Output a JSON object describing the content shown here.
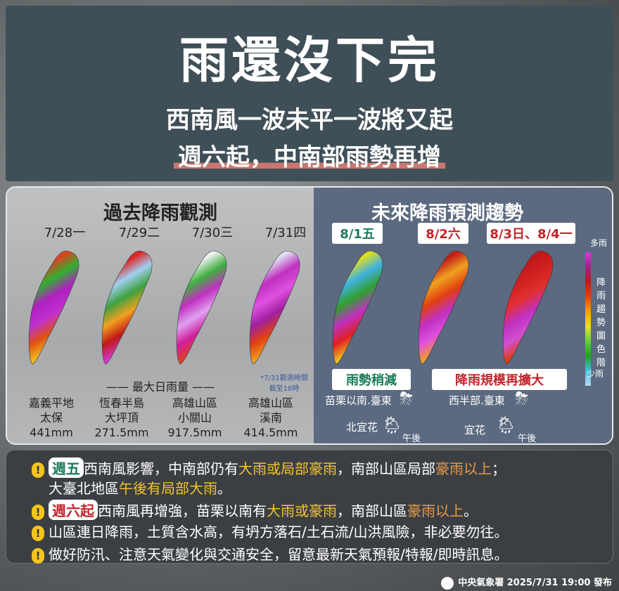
{
  "header": {
    "title": "雨還沒下完",
    "subtitle": "西南風一波未平一波將又起",
    "highlight": "週六起，中南部雨勢再增"
  },
  "past": {
    "title": "過去降雨觀測",
    "dates": [
      "7/28一",
      "7/29二",
      "7/30三",
      "7/31四"
    ],
    "max_label": "最大日雨量",
    "note": "*7/31觀測時間截至18時",
    "sites": [
      {
        "area": "嘉義平地",
        "station": "太保",
        "amount": "441mm"
      },
      {
        "area": "恆春半島",
        "station": "大坪頂",
        "amount": "271.5mm"
      },
      {
        "area": "高雄山區",
        "station": "小關山",
        "amount": "917.5mm"
      },
      {
        "area": "高雄山區",
        "station": "溪南",
        "amount": "414.5mm"
      }
    ]
  },
  "forecast": {
    "title": "未來降雨預測趨勢",
    "dates": [
      "8/1五",
      "8/2六",
      "8/3日、8/4一"
    ],
    "date_colors": [
      "#1a7a5a",
      "#c0262c",
      "#c0262c"
    ],
    "trend1": "雨勢稍減",
    "trend2": "降雨規模再擴大",
    "w1a": "苗栗以南.臺東",
    "w1b": "北宜花",
    "w2a": "西半部.臺東",
    "w2b": "宜花",
    "afternoon": "午後",
    "legend": {
      "top": "多雨",
      "title": "降雨趨勢圖色階",
      "bottom": "少雨"
    }
  },
  "alerts": [
    {
      "tag": "週五",
      "parts": [
        "西南風影響，中南部仍有",
        "大雨或局部豪雨",
        "，南部山區局部",
        "豪雨以上",
        "；"
      ],
      "line2": [
        "大臺北地區",
        "午後有局部大雨",
        "。"
      ]
    },
    {
      "tag": "週六起",
      "parts": [
        "西南風再增強，苗栗以南有",
        "大雨或豪雨",
        "，南部山區",
        "豪雨以上",
        "。"
      ]
    },
    {
      "text": "山區連日降雨，土質含水高，有坍方落石/土石流/山洪風險，非必要勿往。"
    },
    {
      "text": "做好防汛、注意天氣變化與交通安全，留意最新天氣預報/特報/即時訊息。"
    }
  ],
  "footer": "中央氣象署 2025/7/31 19:00 發布"
}
